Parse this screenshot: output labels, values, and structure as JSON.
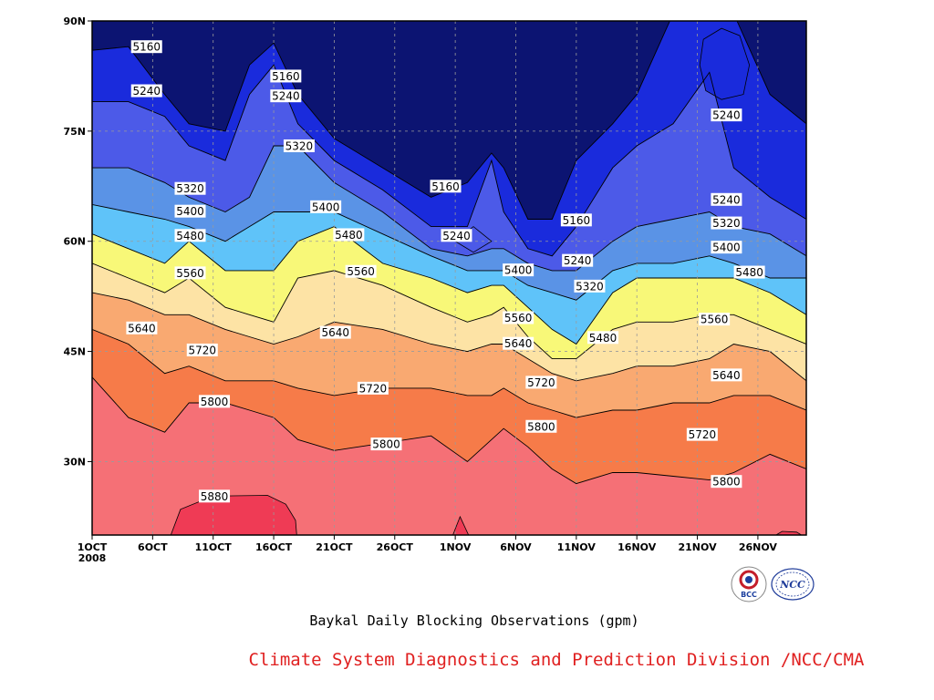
{
  "chart_data": {
    "type": "filled-contour",
    "title": "Baykal Daily Blocking Observations (gpm)",
    "credit": "Climate System Diagnostics and Prediction Division /NCC/CMA",
    "x_ticks": [
      "1OCT\n2008",
      "6OCT",
      "11OCT",
      "16OCT",
      "21OCT",
      "26OCT",
      "1NOV",
      "6NOV",
      "11NOV",
      "16NOV",
      "21NOV",
      "26NOV"
    ],
    "x_range_days": [
      0,
      59
    ],
    "y_ticks": [
      "30N",
      "45N",
      "60N",
      "75N",
      "90N"
    ],
    "y_tick_values": [
      30,
      45,
      60,
      75,
      90
    ],
    "y_range": [
      20,
      90
    ],
    "contour_levels": [
      5160,
      5240,
      5320,
      5400,
      5480,
      5560,
      5640,
      5720,
      5800,
      5880
    ],
    "fill_colors": [
      "#0c1472",
      "#1a2bdc",
      "#4c5ae8",
      "#5a93e6",
      "#5fc3f9",
      "#f8f878",
      "#fde3a5",
      "#f9a971",
      "#f67b49",
      "#f57076",
      "#ef3b55"
    ],
    "lat_by_day": {
      "days": [
        0,
        3,
        6,
        8,
        11,
        13,
        15,
        17,
        20,
        24,
        28,
        31,
        33,
        34,
        36,
        38,
        40,
        43,
        45,
        48,
        51,
        53,
        56,
        59
      ],
      "levels": {
        "5160": [
          86,
          86.5,
          80,
          76,
          75,
          84,
          87,
          80,
          74,
          70,
          66,
          68,
          72,
          70,
          63,
          63,
          71,
          76,
          80,
          91,
          91,
          91,
          80,
          76
        ],
        "5240": [
          79,
          79,
          77,
          73,
          71,
          80,
          84,
          76,
          71,
          67,
          62,
          62,
          71,
          64,
          59,
          58,
          62,
          70,
          73,
          76,
          83,
          70,
          66,
          63
        ],
        "5320": [
          70,
          70,
          68,
          66,
          64,
          66,
          73,
          73,
          68,
          64,
          59,
          58,
          59,
          59,
          57,
          56,
          56,
          60,
          62,
          63,
          64,
          62,
          61,
          58
        ],
        "5400": [
          65,
          64,
          63,
          62,
          60,
          62,
          64,
          64,
          64,
          61,
          58,
          56,
          56,
          56,
          54,
          53,
          52,
          56,
          57,
          57,
          58,
          57,
          55,
          55
        ],
        "5480": [
          61,
          59,
          57,
          60,
          56,
          56,
          56,
          60,
          62,
          57,
          55,
          53,
          54,
          54,
          51,
          48,
          46,
          53,
          55,
          55,
          55,
          55,
          53,
          50
        ],
        "5560": [
          57,
          55,
          53,
          55,
          51,
          50,
          49,
          55,
          56,
          54,
          51,
          49,
          50,
          51,
          47,
          44,
          44,
          48,
          49,
          49,
          50,
          50,
          48,
          46
        ],
        "5640": [
          53,
          52,
          50,
          50,
          48,
          47,
          46,
          47,
          49,
          48,
          46,
          45,
          46,
          46,
          44,
          42,
          41,
          42,
          43,
          43,
          44,
          46,
          45,
          41
        ],
        "5720": [
          48,
          46,
          42,
          43,
          41,
          41,
          41,
          40,
          39,
          40,
          40,
          39,
          39,
          40,
          38,
          37,
          36,
          37,
          37,
          38,
          38,
          39,
          39,
          37
        ],
        "5800": [
          41.5,
          36,
          34,
          38,
          38,
          37,
          36,
          33,
          31.5,
          32.5,
          33.5,
          30,
          33,
          34.5,
          32,
          29,
          27,
          28.5,
          28.5,
          28,
          27.5,
          28.5,
          31,
          29
        ],
        "5880": [
          20,
          20,
          20,
          20,
          20,
          20,
          20,
          20,
          20,
          20,
          20,
          20,
          20,
          20,
          20,
          20,
          20,
          20,
          20,
          20,
          20,
          20,
          20,
          20
        ]
      }
    },
    "extra_regions": [
      {
        "name": "5880-patch-mid-oct",
        "level": 5880,
        "points": [
          [
            6.5,
            20
          ],
          [
            7.3,
            23.5
          ],
          [
            10,
            25.3
          ],
          [
            14.5,
            25.4
          ],
          [
            16,
            24.2
          ],
          [
            16.8,
            22
          ],
          [
            16.9,
            20
          ]
        ]
      },
      {
        "name": "5880-spike-1nov",
        "level": 5880,
        "points": [
          [
            29.8,
            20
          ],
          [
            30.4,
            22.5
          ],
          [
            31.1,
            20
          ]
        ]
      },
      {
        "name": "5880-sliver-late-nov",
        "level": 5880,
        "points": [
          [
            56.5,
            20
          ],
          [
            57,
            20.5
          ],
          [
            58.2,
            20.4
          ],
          [
            58.6,
            20
          ]
        ]
      },
      {
        "name": "5160-closed-low",
        "level": 5160,
        "points": [
          [
            50.2,
            84
          ],
          [
            50.5,
            87.5
          ],
          [
            52,
            89
          ],
          [
            53.5,
            88
          ],
          [
            54.3,
            84
          ],
          [
            53.8,
            80
          ],
          [
            52,
            79.3
          ],
          [
            50.7,
            80.5
          ]
        ]
      },
      {
        "name": "5240-sliver-31oct",
        "level": 5240,
        "points": [
          [
            30,
            60
          ],
          [
            31.5,
            62
          ],
          [
            33,
            60
          ],
          [
            31.5,
            58.5
          ]
        ]
      }
    ],
    "contour_labels": [
      {
        "level": "5160",
        "day": 4.5,
        "lat": 86.5
      },
      {
        "level": "5240",
        "day": 4.5,
        "lat": 80.5
      },
      {
        "level": "5160",
        "day": 16,
        "lat": 82.5
      },
      {
        "level": "5240",
        "day": 16,
        "lat": 79.8
      },
      {
        "level": "5320",
        "day": 17.1,
        "lat": 73
      },
      {
        "level": "5320",
        "day": 8.1,
        "lat": 67.2
      },
      {
        "level": "5400",
        "day": 8.1,
        "lat": 64.1
      },
      {
        "level": "5480",
        "day": 8.1,
        "lat": 60.8
      },
      {
        "level": "5560",
        "day": 8.1,
        "lat": 55.7
      },
      {
        "level": "5640",
        "day": 4.1,
        "lat": 48.2
      },
      {
        "level": "5720",
        "day": 9.1,
        "lat": 45.2
      },
      {
        "level": "5800",
        "day": 10.1,
        "lat": 38.2
      },
      {
        "level": "5880",
        "day": 10.1,
        "lat": 25.3
      },
      {
        "level": "5400",
        "day": 19.3,
        "lat": 64.7
      },
      {
        "level": "5480",
        "day": 21.2,
        "lat": 60.9
      },
      {
        "level": "5560",
        "day": 22.2,
        "lat": 55.9
      },
      {
        "level": "5640",
        "day": 20.1,
        "lat": 47.6
      },
      {
        "level": "5720",
        "day": 23.2,
        "lat": 40
      },
      {
        "level": "5800",
        "day": 24.3,
        "lat": 32.4
      },
      {
        "level": "5160",
        "day": 29.2,
        "lat": 67.5
      },
      {
        "level": "5240",
        "day": 30.1,
        "lat": 60.8
      },
      {
        "level": "5400",
        "day": 35.2,
        "lat": 56.1
      },
      {
        "level": "5560",
        "day": 35.2,
        "lat": 49.6
      },
      {
        "level": "5640",
        "day": 35.2,
        "lat": 46.1
      },
      {
        "level": "5720",
        "day": 37.1,
        "lat": 40.8
      },
      {
        "level": "5800",
        "day": 37.1,
        "lat": 34.8
      },
      {
        "level": "5160",
        "day": 40,
        "lat": 62.9
      },
      {
        "level": "5240",
        "day": 40.1,
        "lat": 57.4
      },
      {
        "level": "5320",
        "day": 41.1,
        "lat": 53.9
      },
      {
        "level": "5480",
        "day": 42.2,
        "lat": 46.9
      },
      {
        "level": "5240",
        "day": 52.4,
        "lat": 77.2
      },
      {
        "level": "5240",
        "day": 52.4,
        "lat": 65.7
      },
      {
        "level": "5320",
        "day": 52.4,
        "lat": 62.5
      },
      {
        "level": "5400",
        "day": 52.4,
        "lat": 59.2
      },
      {
        "level": "5480",
        "day": 54.3,
        "lat": 55.8
      },
      {
        "level": "5560",
        "day": 51.4,
        "lat": 49.4
      },
      {
        "level": "5640",
        "day": 52.4,
        "lat": 41.8
      },
      {
        "level": "5720",
        "day": 50.4,
        "lat": 33.7
      },
      {
        "level": "5800",
        "day": 52.4,
        "lat": 27.3
      }
    ]
  },
  "logos": {
    "bcc": {
      "label": "BCC",
      "ring_color": "#c41e2a",
      "inner_color": "#1c3f9e"
    },
    "ncc": {
      "label": "NCC",
      "color": "#1f3c9a"
    }
  }
}
